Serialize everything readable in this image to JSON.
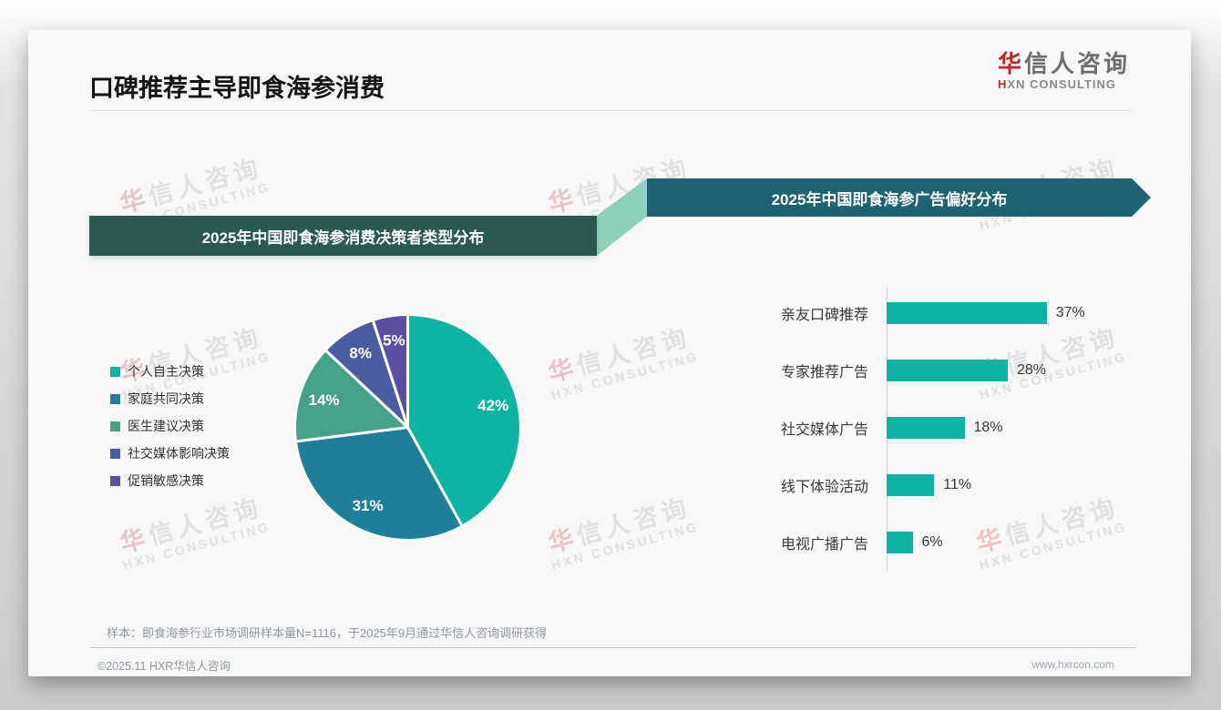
{
  "header": {
    "title": "口碑推荐主导即食海参消费",
    "logo": {
      "cn_first": "华",
      "cn_rest": "信人咨询",
      "en_first": "H",
      "en_rest": "XN CONSULTING"
    }
  },
  "watermark": {
    "cn_first": "华",
    "cn_rest": "信人咨询",
    "en": "HXN CONSULTING"
  },
  "chart_data": [
    {
      "type": "pie",
      "title": "2025年中国即食海参消费决策者类型分布",
      "labels": [
        "个人自主决策",
        "家庭共同决策",
        "医生建议决策",
        "社交媒体影响决策",
        "促销敏感决策"
      ],
      "values": [
        42,
        31,
        14,
        8,
        5
      ],
      "unit": "%",
      "data_labels": [
        "42%",
        "31%",
        "14%",
        "8%",
        "5%"
      ],
      "colors": [
        "#0db4a4",
        "#1f7e99",
        "#46a189",
        "#4a5da3",
        "#5c4ea3"
      ],
      "start_angle": "top",
      "direction": "clockwise",
      "legend_position": "left"
    },
    {
      "type": "bar",
      "orientation": "horizontal",
      "title": "2025年中国即食海参广告偏好分布",
      "categories": [
        "亲友口碑推荐",
        "专家推荐广告",
        "社交媒体广告",
        "线下体验活动",
        "电视广播广告"
      ],
      "values": [
        37,
        28,
        18,
        11,
        6
      ],
      "unit": "%",
      "data_labels": [
        "37%",
        "28%",
        "18%",
        "11%",
        "6%"
      ],
      "bar_color": "#0db4a4",
      "xlim": [
        0,
        40
      ],
      "grid": false
    }
  ],
  "footnote": "样本：即食海参行业市场调研样本量N=1116，于2025年9月通过华信人咨询调研获得",
  "footer": {
    "copyright": "©2025.11 HXR华信人咨询",
    "website": "www.hxrcon.com"
  }
}
